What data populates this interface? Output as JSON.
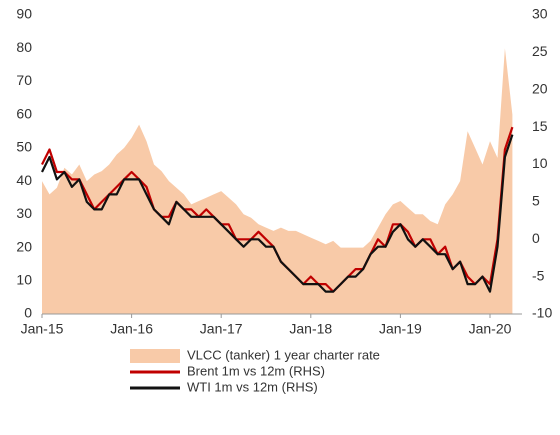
{
  "chart_data": {
    "type": "line",
    "categories": [
      "Jan-15",
      null,
      null,
      null,
      null,
      null,
      null,
      null,
      null,
      null,
      null,
      null,
      "Jan-16",
      null,
      null,
      null,
      null,
      null,
      null,
      null,
      null,
      null,
      null,
      null,
      "Jan-17",
      null,
      null,
      null,
      null,
      null,
      null,
      null,
      null,
      null,
      null,
      null,
      "Jan-18",
      null,
      null,
      null,
      null,
      null,
      null,
      null,
      null,
      null,
      null,
      null,
      "Jan-19",
      null,
      null,
      null,
      null,
      null,
      null,
      null,
      null,
      null,
      null,
      null,
      "Jan-20",
      null,
      null,
      null
    ],
    "series": [
      {
        "name": "VLCC (tanker) 1 year charter rate",
        "color": "#f8caa8",
        "style": "area",
        "values": [
          40,
          36,
          38,
          44,
          42,
          45,
          40,
          42,
          43,
          45,
          48,
          50,
          53,
          57,
          52,
          45,
          43,
          40,
          38,
          36,
          33,
          34,
          35,
          36,
          37,
          35,
          33,
          30,
          29,
          27,
          26,
          25,
          26,
          25,
          25,
          24,
          23,
          22,
          21,
          22,
          20,
          20,
          20,
          20,
          22,
          26,
          30,
          33,
          34,
          32,
          30,
          30,
          28,
          27,
          33,
          36,
          40,
          55,
          50,
          45,
          52,
          47,
          80,
          60
        ]
      },
      {
        "name": "Brent 1m vs 12m (RHS)",
        "color": "#c00000",
        "axis": "y2",
        "values": [
          10,
          12,
          9,
          9,
          8,
          8,
          6,
          4,
          5,
          6,
          7,
          8,
          9,
          8,
          7,
          4,
          3,
          3,
          5,
          4,
          4,
          3,
          4,
          3,
          2,
          2,
          0,
          0,
          0,
          1,
          0,
          -1,
          -3,
          -4,
          -5,
          -6,
          -5,
          -6,
          -6,
          -7,
          -6,
          -5,
          -4,
          -4,
          -2,
          0,
          -1,
          2,
          2,
          1,
          -1,
          0,
          0,
          -2,
          -1,
          -4,
          -3,
          -5,
          -6,
          -5,
          -6,
          0,
          12,
          15
        ]
      },
      {
        "name": "WTI 1m vs 12m (RHS)",
        "color": "#111111",
        "axis": "y2",
        "values": [
          9,
          11,
          8,
          9,
          7,
          8,
          5,
          4,
          4,
          6,
          6,
          8,
          8,
          8,
          6,
          4,
          3,
          2,
          5,
          4,
          3,
          3,
          3,
          3,
          2,
          1,
          0,
          -1,
          0,
          0,
          -1,
          -1,
          -3,
          -4,
          -5,
          -6,
          -6,
          -6,
          -7,
          -7,
          -6,
          -5,
          -5,
          -4,
          -2,
          -1,
          -1,
          1,
          2,
          0,
          -1,
          0,
          -1,
          -2,
          -2,
          -4,
          -3,
          -6,
          -6,
          -5,
          -7,
          -1,
          11,
          14
        ]
      }
    ],
    "ylim": [
      0,
      90
    ],
    "yticks": [
      0,
      10,
      20,
      30,
      40,
      50,
      60,
      70,
      80,
      90
    ],
    "y2lim": [
      -10,
      30
    ],
    "y2ticks": [
      -10,
      -5,
      0,
      5,
      10,
      15,
      20,
      25,
      30
    ]
  }
}
